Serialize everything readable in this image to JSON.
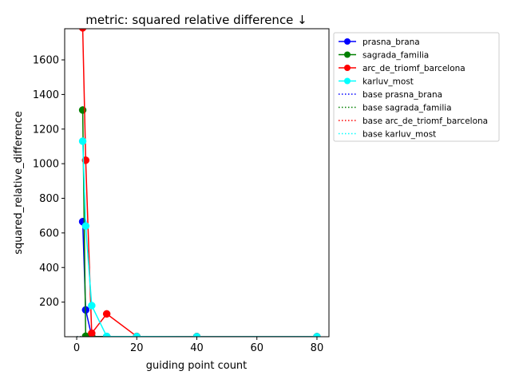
{
  "chart_data": {
    "type": "line",
    "title": "metric: squared relative difference ↓",
    "xlabel": "guiding point count",
    "ylabel": "squared_relative_difference",
    "xlim": [
      -4,
      84
    ],
    "ylim": [
      0,
      1780
    ],
    "xticks": [
      0,
      20,
      40,
      60,
      80
    ],
    "yticks": [
      200,
      400,
      600,
      800,
      1000,
      1200,
      1400,
      1600
    ],
    "grid": false,
    "legend_position": "outside-right",
    "series": [
      {
        "name": "prasna_brana",
        "color": "#0000ff",
        "style": "solid-marker",
        "x": [
          2,
          3,
          5,
          10,
          20,
          40,
          80
        ],
        "y": [
          665,
          155,
          2,
          1,
          0.5,
          0.3,
          0.2
        ]
      },
      {
        "name": "sagrada_familia",
        "color": "#008000",
        "style": "solid-marker",
        "x": [
          2,
          3,
          5,
          10,
          20,
          40,
          80
        ],
        "y": [
          1310,
          3,
          1,
          0.5,
          0.3,
          0.2,
          0.1
        ]
      },
      {
        "name": "arc_de_triomf_barcelona",
        "color": "#ff0000",
        "style": "solid-marker",
        "x": [
          2,
          3,
          5,
          10,
          20,
          40,
          80
        ],
        "y": [
          1785,
          1020,
          20,
          132,
          2,
          1,
          0.5
        ]
      },
      {
        "name": "karluv_most",
        "color": "#00ffff",
        "style": "solid-marker",
        "x": [
          2,
          3,
          5,
          10,
          20,
          40,
          80
        ],
        "y": [
          1130,
          640,
          180,
          2,
          1,
          0.5,
          0.3
        ]
      },
      {
        "name": "base prasna_brana",
        "color": "#0000ff",
        "style": "dotted",
        "x": [
          0,
          80
        ],
        "y": [
          0.2,
          0.2
        ]
      },
      {
        "name": "base sagrada_familia",
        "color": "#008000",
        "style": "dotted",
        "x": [
          0,
          80
        ],
        "y": [
          0.2,
          0.2
        ]
      },
      {
        "name": "base arc_de_triomf_barcelona",
        "color": "#ff0000",
        "style": "dotted",
        "x": [
          0,
          80
        ],
        "y": [
          0.2,
          0.2
        ]
      },
      {
        "name": "base karluv_most",
        "color": "#00ffff",
        "style": "dotted",
        "x": [
          0,
          80
        ],
        "y": [
          0.2,
          0.2
        ]
      }
    ]
  }
}
